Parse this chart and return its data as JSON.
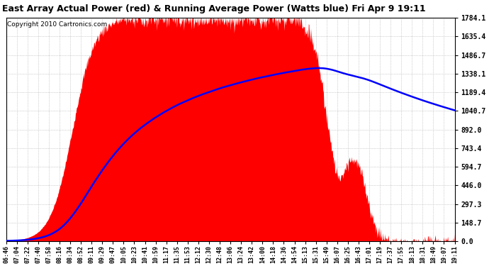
{
  "title": "East Array Actual Power (red) & Running Average Power (Watts blue) Fri Apr 9 19:11",
  "copyright": "Copyright 2010 Cartronics.com",
  "background_color": "#ffffff",
  "plot_bg_color": "#ffffff",
  "grid_color": "#aaaaaa",
  "actual_color": "red",
  "avg_color": "blue",
  "ymin": 0.0,
  "ymax": 1784.1,
  "yticks": [
    0.0,
    148.7,
    297.3,
    446.0,
    594.7,
    743.4,
    892.0,
    1040.7,
    1189.4,
    1338.1,
    1486.7,
    1635.4,
    1784.1
  ],
  "x_labels": [
    "06:46",
    "07:04",
    "07:22",
    "07:40",
    "07:58",
    "08:16",
    "08:34",
    "08:52",
    "09:11",
    "09:29",
    "09:47",
    "10:05",
    "10:23",
    "10:41",
    "10:59",
    "11:17",
    "11:35",
    "11:53",
    "12:12",
    "12:30",
    "12:48",
    "13:06",
    "13:24",
    "13:42",
    "14:00",
    "14:18",
    "14:36",
    "14:54",
    "15:13",
    "15:31",
    "15:49",
    "16:07",
    "16:25",
    "16:43",
    "17:01",
    "17:19",
    "17:37",
    "17:55",
    "18:13",
    "18:31",
    "18:49",
    "19:07",
    "19:11"
  ],
  "title_fontsize": 9,
  "copyright_fontsize": 6.5,
  "ytick_fontsize": 7,
  "xtick_fontsize": 6
}
